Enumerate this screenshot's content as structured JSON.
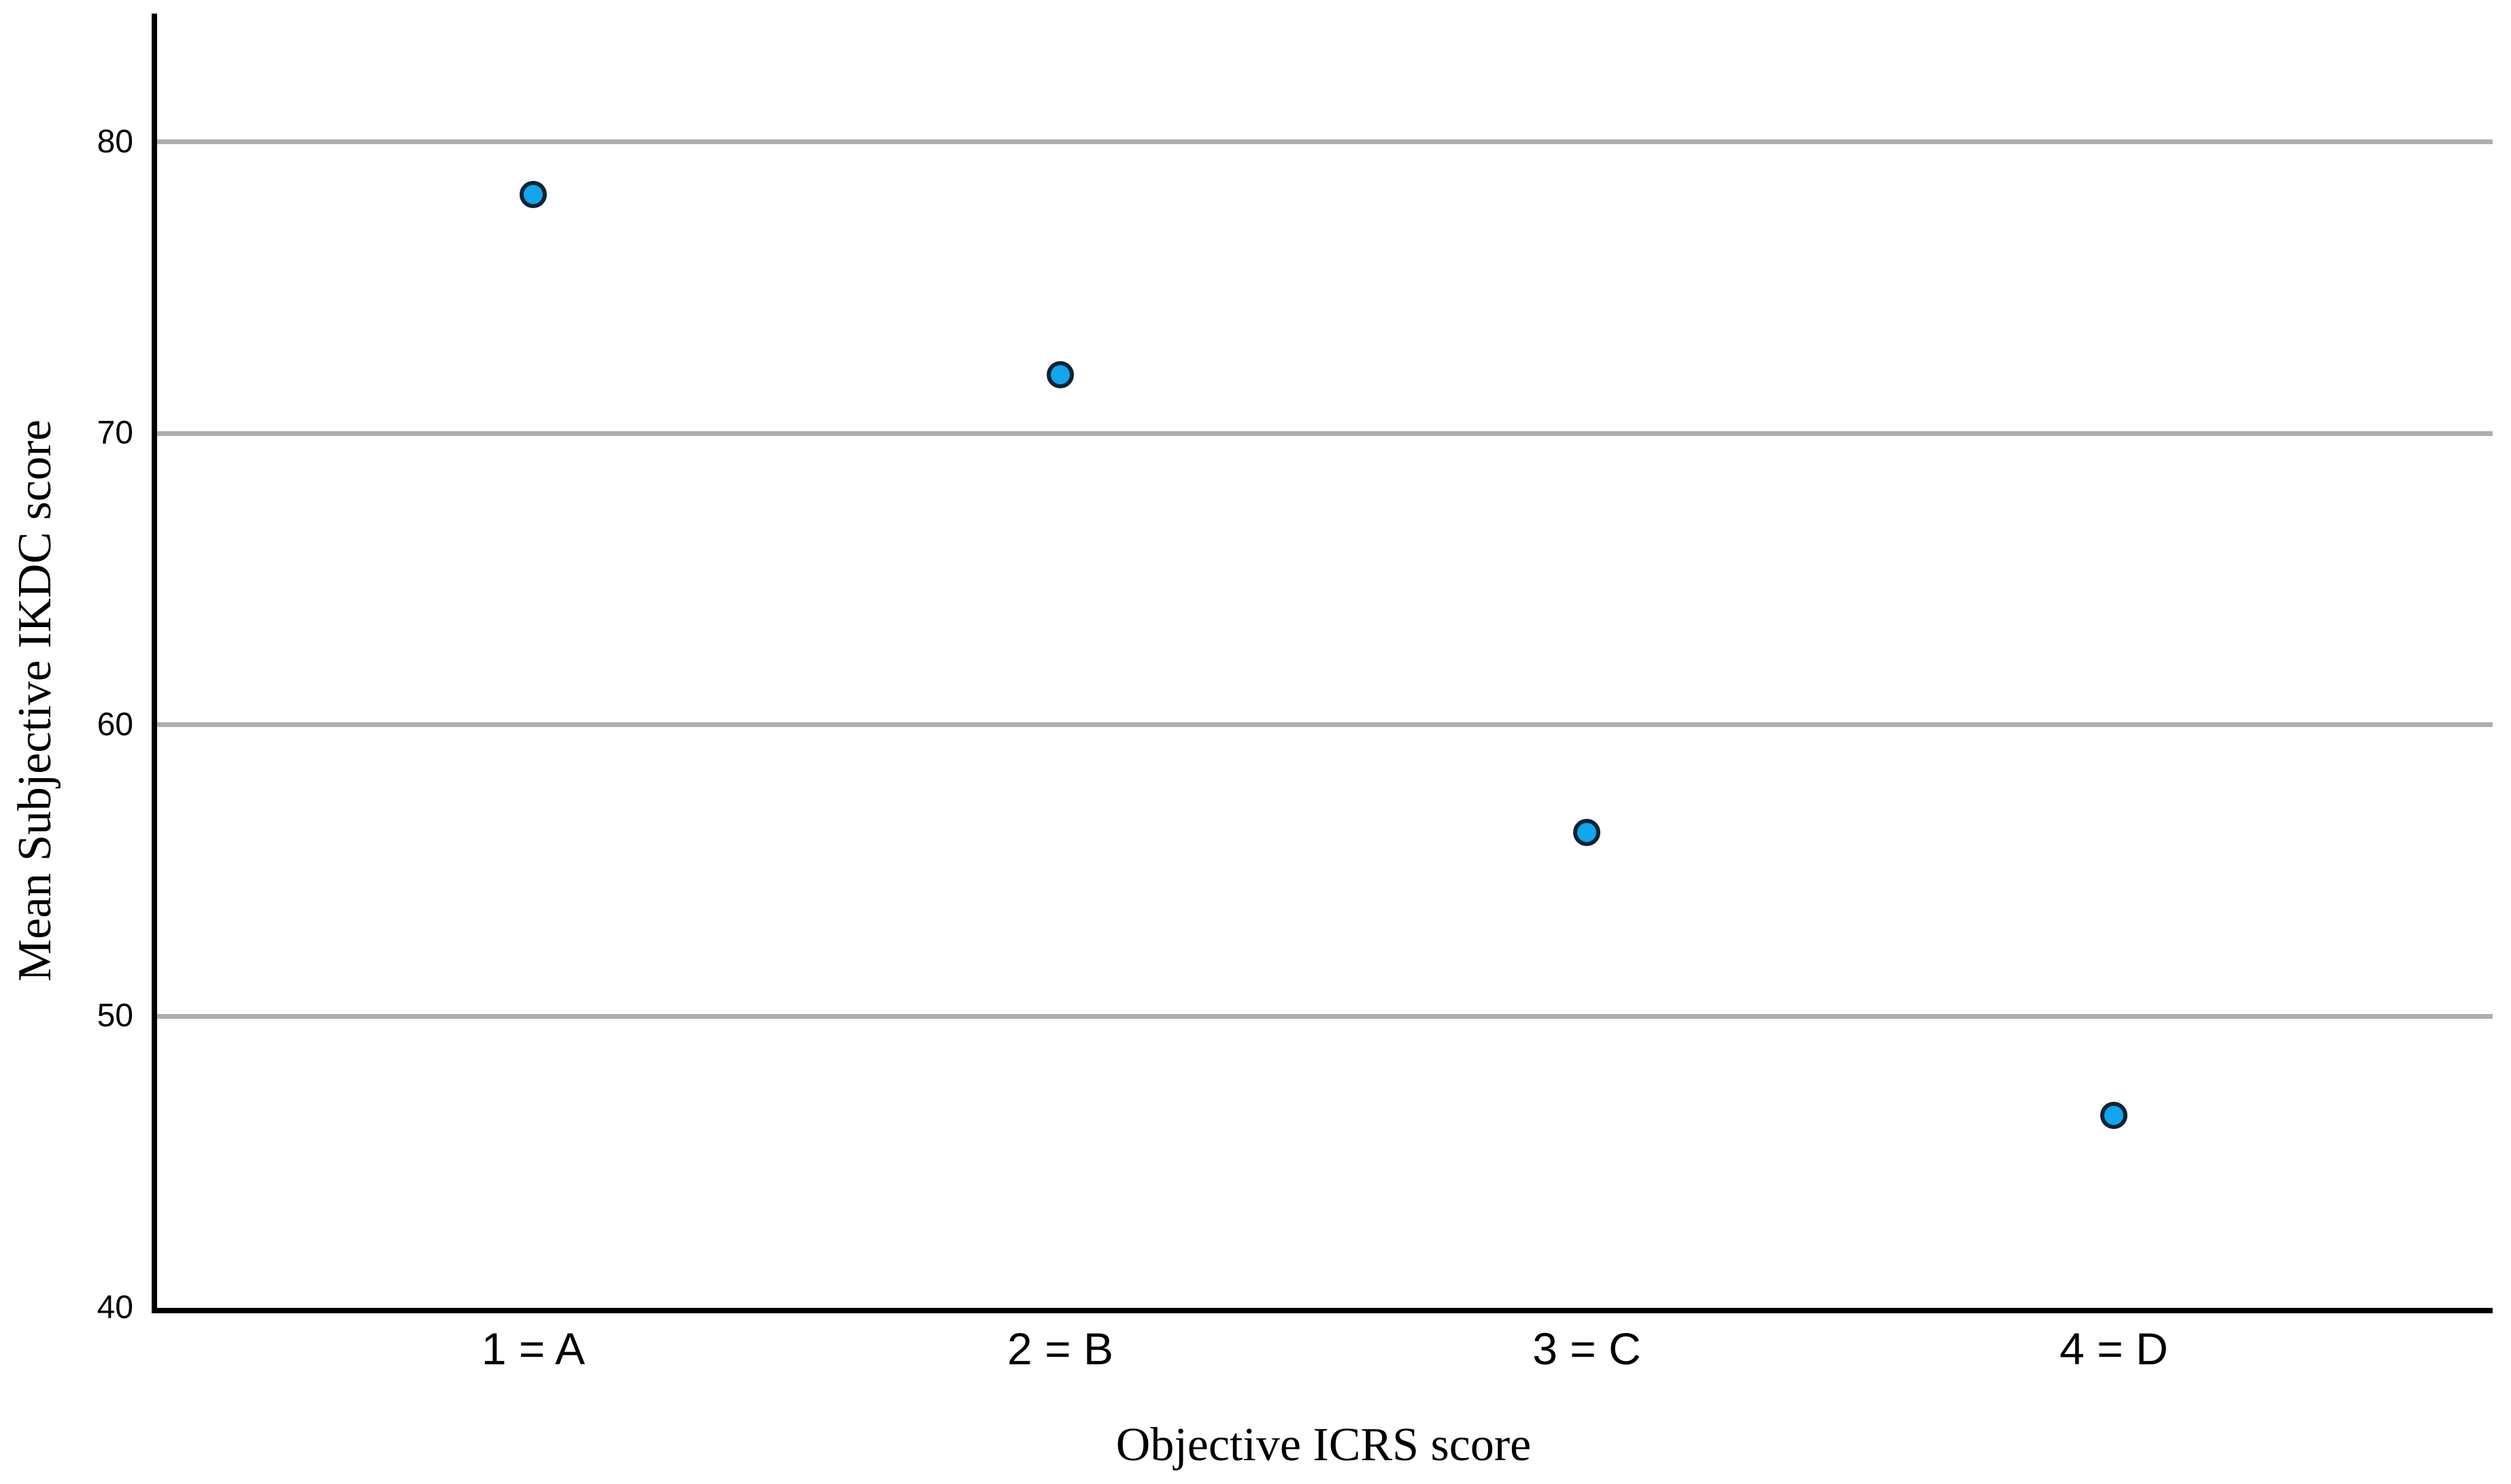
{
  "chart_data": {
    "type": "scatter",
    "title": "",
    "xlabel": "Objective ICRS score",
    "ylabel": "Mean Subjective IKDC score",
    "categories": [
      "1 = A",
      "2 = B",
      "3 = C",
      "4 = D"
    ],
    "series": [
      {
        "name": "Mean Subjective IKDC score",
        "values": [
          78.2,
          72.0,
          56.3,
          46.6
        ]
      }
    ],
    "y_ticks": [
      40,
      50,
      60,
      70,
      80
    ],
    "ylim": [
      40,
      84.4
    ],
    "xlim_categories": "categories evenly spaced with symmetric outer padding",
    "grid": "horizontal gridlines at 50, 60, 70, 80 only",
    "legend_position": "none",
    "colors": {
      "marker_fill": "#12A5EE",
      "marker_stroke": "#0C2433",
      "gridline": "#AEAEAE",
      "axis_line": "#000000",
      "background": "#FFFFFF",
      "text": "#000000"
    }
  }
}
